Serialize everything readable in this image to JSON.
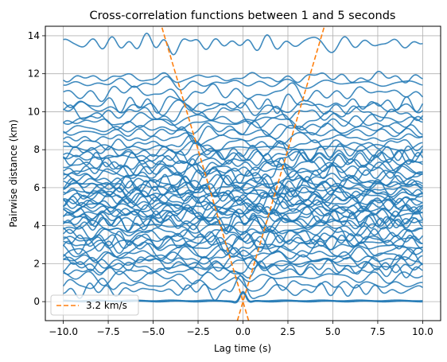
{
  "chart_data": {
    "type": "line",
    "title": "Cross-correlation functions between 1 and 5 seconds",
    "xlabel": "Lag time (s)",
    "ylabel": "Pairwise distance (km)",
    "xlim": [
      -11,
      11
    ],
    "ylim": [
      -1,
      14.5
    ],
    "x_ticks": [
      -10,
      -7.5,
      -5,
      -2.5,
      0,
      2.5,
      5,
      7.5,
      10
    ],
    "x_tick_labels": [
      "−10.0",
      "−7.5",
      "−5.0",
      "−2.5",
      "0.0",
      "2.5",
      "5.0",
      "7.5",
      "10.0"
    ],
    "y_ticks": [
      0,
      2,
      4,
      6,
      8,
      10,
      12,
      14
    ],
    "y_tick_labels": [
      "0",
      "2",
      "4",
      "6",
      "8",
      "10",
      "12",
      "14"
    ],
    "grid": true,
    "legend": {
      "position": "lower-left",
      "entries": [
        {
          "label": "3.2 km/s",
          "style": "dashed",
          "color": "#ff7f0e"
        }
      ]
    },
    "series": [
      {
        "kind": "waveforms",
        "color": "#1f77b4",
        "x_range": [
          -10,
          10
        ],
        "pair_distances_km": [
          0.02,
          0.05,
          0.6,
          0.9,
          1.3,
          1.6,
          1.8,
          2.0,
          2.1,
          2.3,
          2.5,
          2.7,
          2.9,
          3.1,
          3.2,
          3.3,
          3.5,
          3.7,
          3.9,
          4.1,
          4.2,
          4.3,
          4.5,
          4.6,
          4.7,
          4.8,
          5.0,
          5.1,
          5.2,
          5.3,
          5.5,
          5.6,
          5.7,
          5.8,
          6.0,
          6.1,
          6.2,
          6.3,
          6.5,
          6.7,
          6.9,
          7.0,
          7.2,
          7.4,
          7.6,
          7.7,
          7.9,
          8.1,
          8.3,
          8.6,
          8.9,
          9.1,
          9.4,
          9.6,
          9.9,
          10.2,
          10.4,
          11.0,
          11.5,
          11.8,
          13.6
        ]
      },
      {
        "name": "3.2 km/s",
        "kind": "moveout",
        "color": "#ff7f0e",
        "velocity_km_s": 3.2,
        "style": "dashed"
      }
    ]
  }
}
